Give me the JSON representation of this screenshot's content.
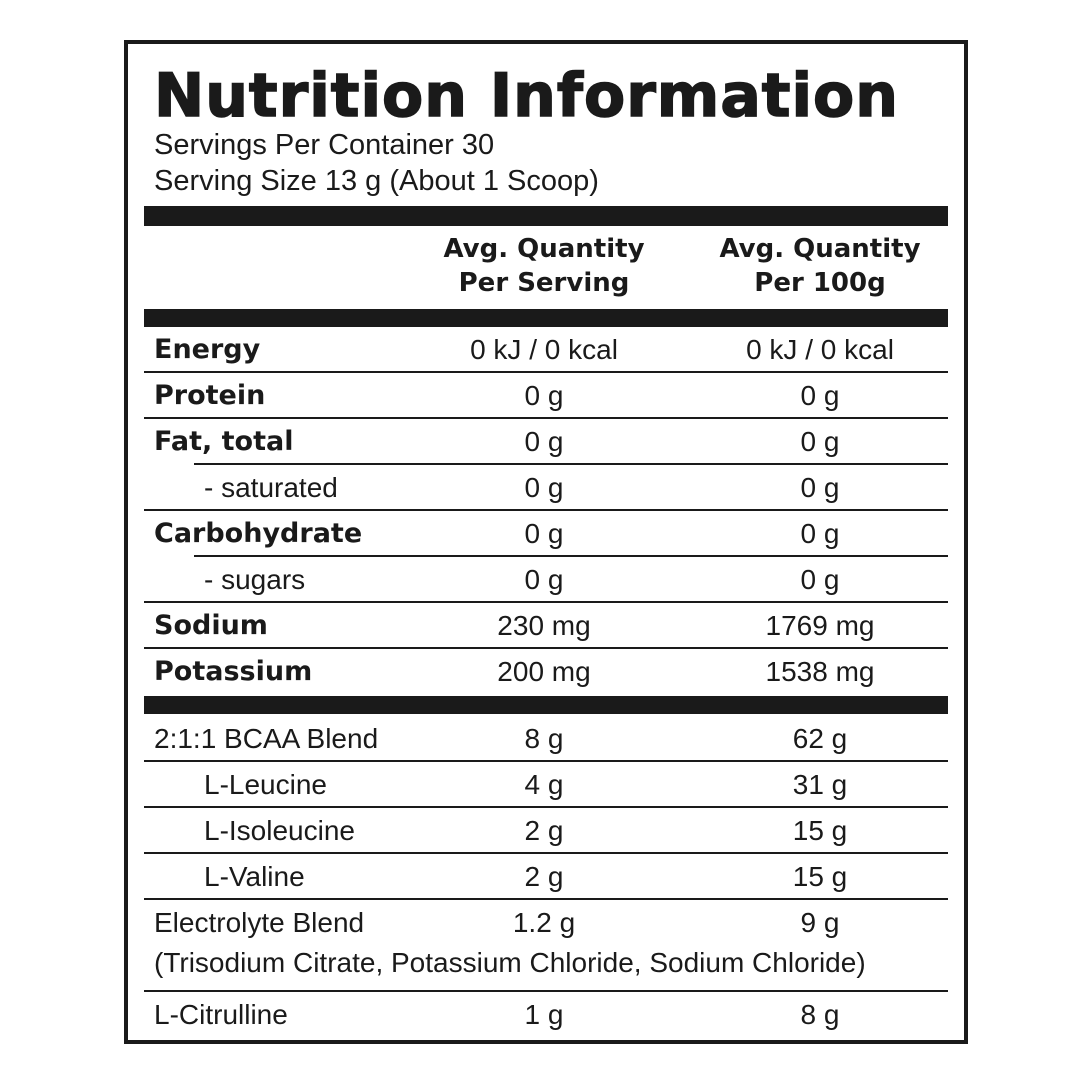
{
  "title": "Nutrition Information",
  "servings_per_container": "Servings Per Container 30",
  "serving_size": "Serving Size 13 g (About 1 Scoop)",
  "columns": {
    "per_serving_line1": "Avg. Quantity",
    "per_serving_line2": "Per Serving",
    "per_100g_line1": "Avg. Quantity",
    "per_100g_line2": "Per 100g"
  },
  "nutrients": [
    {
      "name": "Energy",
      "per_serving": "0 kJ / 0 kcal",
      "per_100g": "0 kJ / 0 kcal"
    },
    {
      "name": "Protein",
      "per_serving": "0 g",
      "per_100g": "0 g"
    },
    {
      "name": "Fat, total",
      "per_serving": "0 g",
      "per_100g": "0 g"
    },
    {
      "name": "- saturated",
      "per_serving": "0 g",
      "per_100g": "0 g"
    },
    {
      "name": "Carbohydrate",
      "per_serving": "0 g",
      "per_100g": "0 g"
    },
    {
      "name": "- sugars",
      "per_serving": "0 g",
      "per_100g": "0 g"
    },
    {
      "name": "Sodium",
      "per_serving": "230 mg",
      "per_100g": "1769 mg"
    },
    {
      "name": "Potassium",
      "per_serving": "200 mg",
      "per_100g": "1538 mg"
    }
  ],
  "ingredients": [
    {
      "name": "2:1:1 BCAA Blend",
      "per_serving": "8 g",
      "per_100g": "62 g"
    },
    {
      "name": "L-Leucine",
      "per_serving": "4 g",
      "per_100g": "31 g"
    },
    {
      "name": "L-Isoleucine",
      "per_serving": "2 g",
      "per_100g": "15 g"
    },
    {
      "name": "L-Valine",
      "per_serving": "2 g",
      "per_100g": "15 g"
    },
    {
      "name": "Electrolyte Blend",
      "per_serving": "1.2 g",
      "per_100g": "9 g",
      "note": "(Trisodium Citrate, Potassium Chloride, Sodium Chloride)"
    },
    {
      "name": "L-Citrulline",
      "per_serving": "1 g",
      "per_100g": "8 g"
    }
  ]
}
